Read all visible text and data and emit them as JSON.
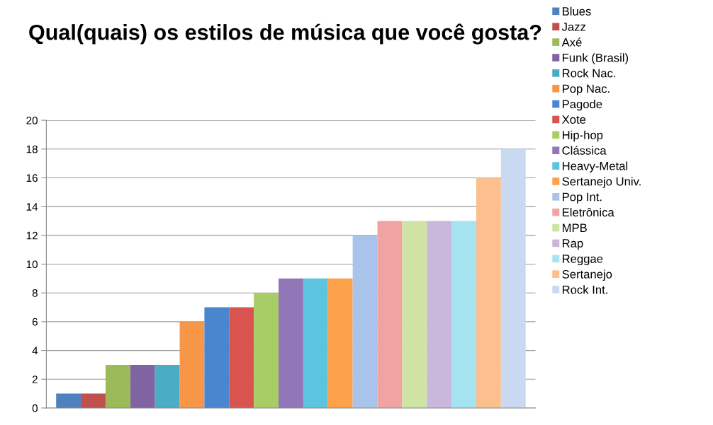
{
  "chart_data": {
    "type": "bar",
    "title": "Qual(quais) os estilos de música que você gosta?",
    "categories": [
      null
    ],
    "series": [
      {
        "name": "Blues",
        "color": "#4f81bd",
        "values": [
          1
        ]
      },
      {
        "name": "Jazz",
        "color": "#c0504d",
        "values": [
          1
        ]
      },
      {
        "name": "Axé",
        "color": "#9bbb59",
        "values": [
          3
        ]
      },
      {
        "name": "Funk (Brasil)",
        "color": "#8064a2",
        "values": [
          3
        ]
      },
      {
        "name": "Rock Nac.",
        "color": "#4bacc6",
        "values": [
          3
        ]
      },
      {
        "name": "Pop Nac.",
        "color": "#f79646",
        "values": [
          6
        ]
      },
      {
        "name": "Pagode",
        "color": "#4a86d0",
        "values": [
          7
        ]
      },
      {
        "name": "Xote",
        "color": "#d9534f",
        "values": [
          7
        ]
      },
      {
        "name": "Hip-hop",
        "color": "#a8cc66",
        "values": [
          8
        ]
      },
      {
        "name": "Clássica",
        "color": "#9277b8",
        "values": [
          9
        ]
      },
      {
        "name": "Heavy-Metal",
        "color": "#5cc4de",
        "values": [
          9
        ]
      },
      {
        "name": "Sertanejo Univ.",
        "color": "#fba24a",
        "values": [
          9
        ]
      },
      {
        "name": "Pop Int.",
        "color": "#a9c4eb",
        "values": [
          12
        ]
      },
      {
        "name": "Eletrônica",
        "color": "#f0a3a2",
        "values": [
          13
        ]
      },
      {
        "name": "MPB",
        "color": "#cfe3a5",
        "values": [
          13
        ]
      },
      {
        "name": "Rap",
        "color": "#c9b8dc",
        "values": [
          13
        ]
      },
      {
        "name": "Reggae",
        "color": "#a5e3f0",
        "values": [
          13
        ]
      },
      {
        "name": "Sertanejo",
        "color": "#fbc08e",
        "values": [
          16
        ]
      },
      {
        "name": "Rock Int.",
        "color": "#c9d9f1",
        "values": [
          18
        ]
      }
    ],
    "ylim": [
      0,
      20
    ],
    "yticks": [
      0,
      2,
      4,
      6,
      8,
      10,
      12,
      14,
      16,
      18,
      20
    ],
    "grid": "y",
    "legend": "right"
  }
}
